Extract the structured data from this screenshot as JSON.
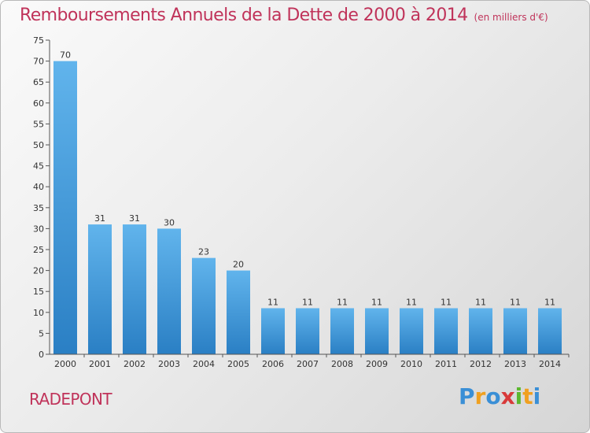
{
  "title": "Remboursements Annuels de la Dette de 2000 à 2014",
  "subtitle": "(en milliers d'€)",
  "place": "RADEPONT",
  "logo": {
    "letters": [
      "P",
      "r",
      "o",
      "x",
      "i",
      "t",
      "i"
    ],
    "colors": [
      "#3a8fd6",
      "#f0a020",
      "#3a8fd6",
      "#d83a3a",
      "#5cb82f",
      "#f0a020",
      "#3a8fd6"
    ]
  },
  "colors": {
    "bar_top": "#61b4ec",
    "bar_bottom": "#2a7fc4",
    "title": "#c0335a"
  },
  "chart_data": {
    "type": "bar",
    "categories": [
      "2000",
      "2001",
      "2002",
      "2003",
      "2004",
      "2005",
      "2006",
      "2007",
      "2008",
      "2009",
      "2010",
      "2011",
      "2012",
      "2013",
      "2014"
    ],
    "values": [
      70,
      31,
      31,
      30,
      23,
      20,
      11,
      11,
      11,
      11,
      11,
      11,
      11,
      11,
      11
    ],
    "ylim": [
      0,
      75
    ],
    "yticks": [
      0,
      5,
      10,
      15,
      20,
      25,
      30,
      35,
      40,
      45,
      50,
      55,
      60,
      65,
      70,
      75
    ],
    "grid": false,
    "title": "Remboursements Annuels de la Dette de 2000 à 2014",
    "xlabel": "",
    "ylabel": ""
  }
}
